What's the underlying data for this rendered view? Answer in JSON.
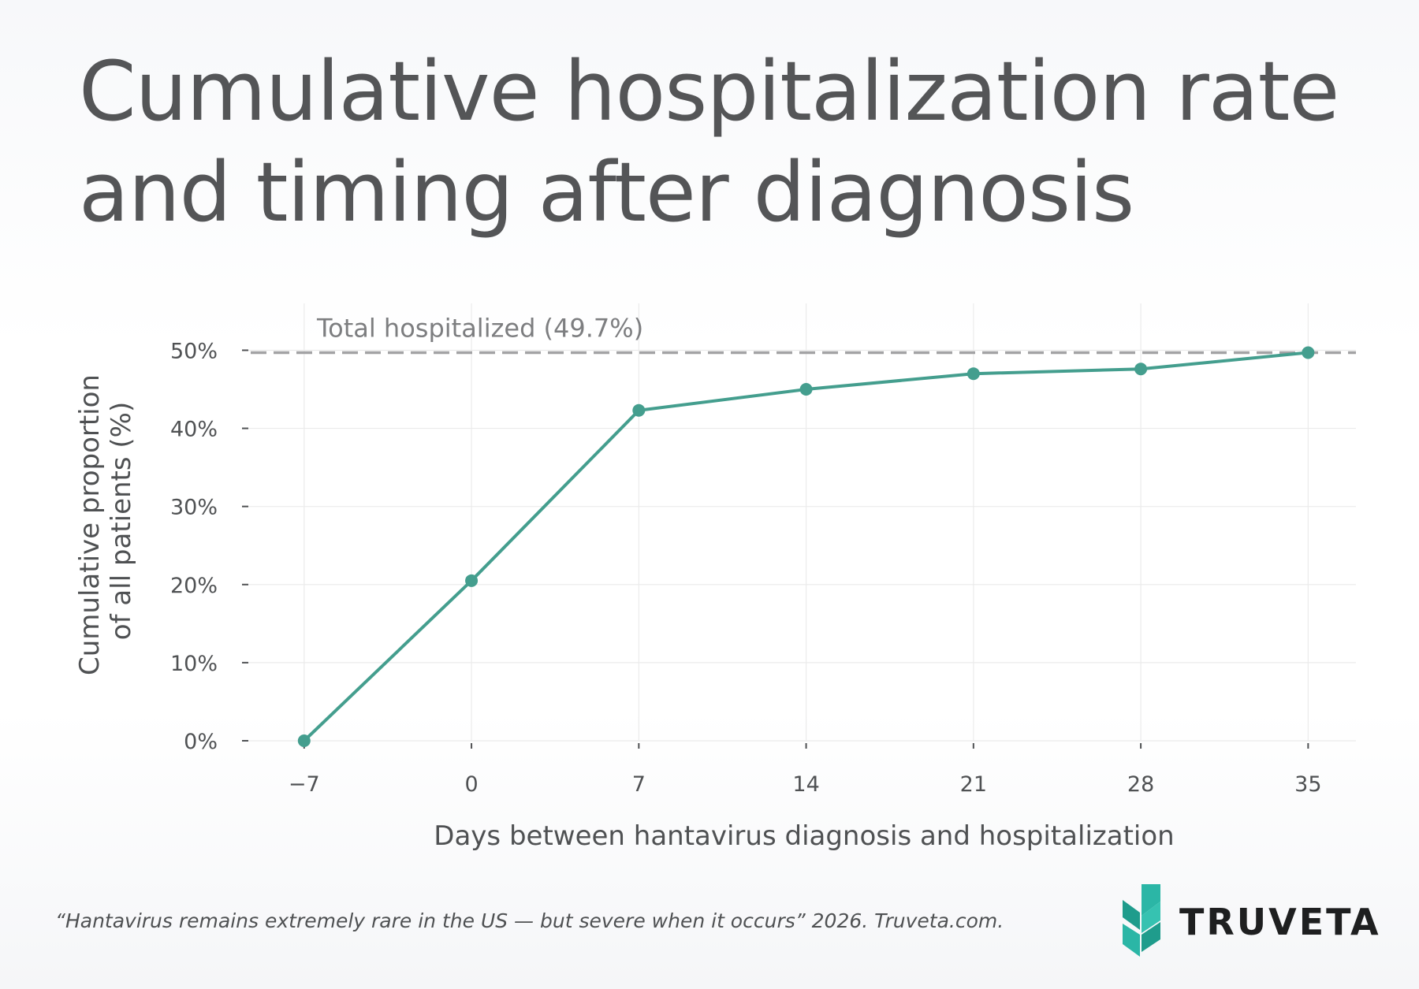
{
  "title": {
    "line1": "Cumulative hospitalization rate",
    "line2": "and timing after diagnosis"
  },
  "chart_data": {
    "type": "line",
    "title": "Cumulative hospitalization rate and timing after diagnosis",
    "xlabel": "Days between hantavirus diagnosis and hospitalization",
    "ylabel_line1": "Cumulative proportion",
    "ylabel_line2": "of all patients (%)",
    "x": [
      -7,
      0,
      7,
      14,
      21,
      28,
      35
    ],
    "x_tick_labels": [
      "−7",
      "0",
      "7",
      "14",
      "21",
      "28",
      "35"
    ],
    "xlim": [
      -9.5,
      37
    ],
    "y_ticks": [
      0,
      10,
      20,
      30,
      40,
      50
    ],
    "y_tick_labels": [
      "0%",
      "10%",
      "20%",
      "30%",
      "40%",
      "50%"
    ],
    "ylim": [
      0,
      56
    ],
    "series": [
      {
        "values": [
          0,
          20.5,
          42.3,
          45.0,
          47.0,
          47.6,
          49.7
        ],
        "color": "#449e8e"
      }
    ],
    "reference_line": {
      "value": 49.7,
      "label": "Total hospitalized (49.7%)",
      "style": "dashed",
      "color": "#a3a3a5"
    },
    "grid": true,
    "legend": "none"
  },
  "source_note": "“Hantavirus remains extremely rare in the US — but severe when it occurs” 2026. Truveta.com.",
  "brand": {
    "name": "TRUVETA",
    "logo_icon": "truveta-chevron-icon",
    "accent_color": "#2bb6a6"
  }
}
